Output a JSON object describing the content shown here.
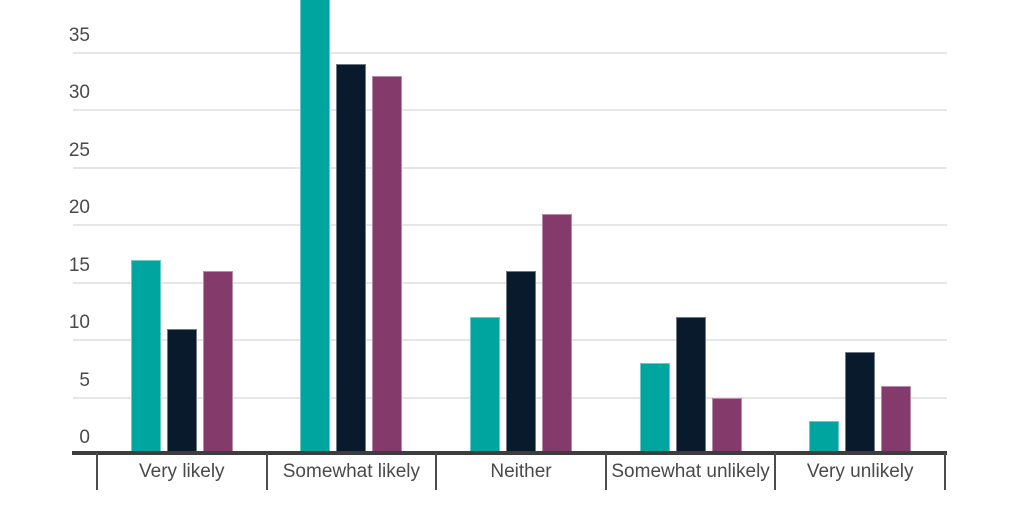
{
  "chart_data": {
    "type": "bar",
    "subtype": "grouped-vertical",
    "title": "",
    "xlabel": "",
    "ylabel": "",
    "categories": [
      "Very likely",
      "Somewhat likely",
      "Neither",
      "Somewhat unlikely",
      "Very unlikely"
    ],
    "series": [
      {
        "name": "teal",
        "color": "#00a5a0",
        "values": [
          17,
          40,
          12,
          8,
          3
        ]
      },
      {
        "name": "navy",
        "color": "#081a2c",
        "values": [
          11,
          34,
          16,
          12,
          9
        ]
      },
      {
        "name": "purple",
        "color": "#843a6b",
        "values": [
          16,
          33,
          21,
          5,
          6
        ]
      }
    ],
    "y_axis": {
      "tick_labels": [
        "0",
        "5",
        "10",
        "15",
        "20",
        "25",
        "30",
        "35"
      ],
      "tick_values": [
        0,
        5,
        10,
        15,
        20,
        25,
        30,
        35
      ],
      "ylim": [
        0,
        40
      ],
      "grid": true,
      "top_bar_clipped_at_image_edge": true
    },
    "legend": "none visible"
  },
  "colors": {
    "background": "#ffffff",
    "gridline": "#e6e6e6",
    "axis_line": "#3d3d3d",
    "tick_mark": "#4d4d4d",
    "label_text": "#4a4a4a"
  }
}
